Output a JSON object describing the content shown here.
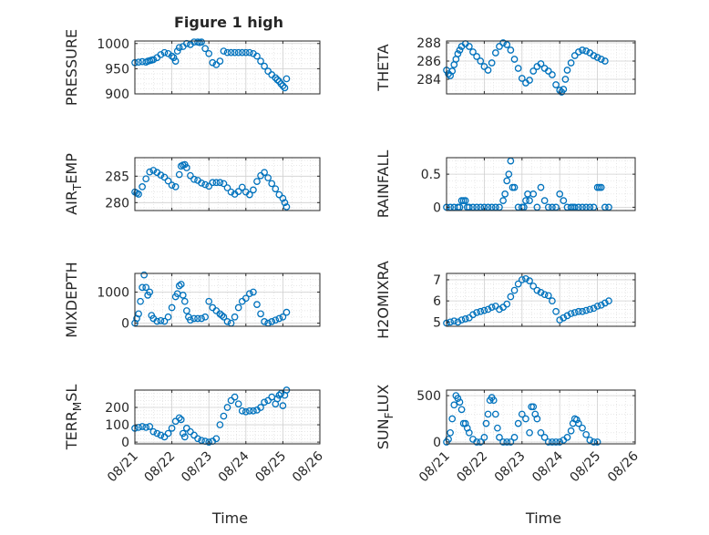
{
  "figure_title": "Figure 1 high",
  "marker_color": "#0072BD",
  "x_ticks": [
    "08/21",
    "08/22",
    "08/23",
    "08/24",
    "08/25",
    "08/26"
  ],
  "chart_data": [
    {
      "id": "pressure",
      "type": "scatter",
      "ylabel": "PRESSURE",
      "xlim": [
        0,
        5
      ],
      "ylim": [
        900,
        1005
      ],
      "yticks": [
        900,
        950,
        1000
      ],
      "grid": true,
      "show_xticks": false,
      "x": [
        0,
        0.1,
        0.2,
        0.3,
        0.35,
        0.4,
        0.45,
        0.5,
        0.6,
        0.7,
        0.8,
        0.9,
        1.0,
        1.05,
        1.1,
        1.15,
        1.2,
        1.3,
        1.4,
        1.5,
        1.6,
        1.7,
        1.75,
        1.8,
        1.9,
        2.0,
        2.1,
        2.2,
        2.3,
        2.4,
        2.5,
        2.6,
        2.7,
        2.8,
        2.9,
        3.0,
        3.1,
        3.2,
        3.3,
        3.4,
        3.5,
        3.6,
        3.7,
        3.8,
        3.85,
        3.9,
        3.95,
        4.0,
        4.05,
        4.1
      ],
      "y": [
        962,
        963,
        964,
        963,
        965,
        966,
        967,
        968,
        972,
        978,
        982,
        980,
        975,
        972,
        965,
        985,
        992,
        994,
        1000,
        998,
        1003,
        1003,
        1002,
        1003,
        990,
        980,
        962,
        958,
        965,
        985,
        982,
        982,
        982,
        982,
        982,
        982,
        982,
        980,
        975,
        965,
        955,
        945,
        938,
        932,
        928,
        925,
        920,
        916,
        912,
        930
      ]
    },
    {
      "id": "theta",
      "type": "scatter",
      "ylabel": "THETA",
      "xlim": [
        0,
        5
      ],
      "ylim": [
        282.4,
        288.2
      ],
      "yticks": [
        284,
        286,
        288
      ],
      "grid": true,
      "show_xticks": false,
      "x": [
        0,
        0.05,
        0.1,
        0.15,
        0.2,
        0.25,
        0.3,
        0.35,
        0.4,
        0.5,
        0.6,
        0.7,
        0.8,
        0.9,
        1.0,
        1.1,
        1.2,
        1.3,
        1.4,
        1.5,
        1.6,
        1.7,
        1.8,
        1.9,
        2.0,
        2.1,
        2.2,
        2.3,
        2.4,
        2.5,
        2.6,
        2.7,
        2.8,
        2.9,
        3.0,
        3.05,
        3.1,
        3.15,
        3.2,
        3.3,
        3.4,
        3.5,
        3.6,
        3.7,
        3.8,
        3.9,
        4.0,
        4.1,
        4.2
      ],
      "y": [
        285,
        284.6,
        284.4,
        284.9,
        285.6,
        286.2,
        286.8,
        287.2,
        287.6,
        287.9,
        287.6,
        287.0,
        286.5,
        286.0,
        285.4,
        285.0,
        285.8,
        286.9,
        287.6,
        288.0,
        287.8,
        287.2,
        286.2,
        285.2,
        284.1,
        283.6,
        283.9,
        284.9,
        285.4,
        285.7,
        285.2,
        284.9,
        284.5,
        283.4,
        282.8,
        282.6,
        282.9,
        284.0,
        285.0,
        285.8,
        286.6,
        287.0,
        287.2,
        287.1,
        286.9,
        286.6,
        286.4,
        286.2,
        286.0
      ]
    },
    {
      "id": "air_temp",
      "type": "scatter",
      "ylabel": "AIR_TEMP",
      "xlim": [
        0,
        5
      ],
      "ylim": [
        278.5,
        288.5
      ],
      "yticks": [
        280,
        285
      ],
      "grid": true,
      "show_xticks": false,
      "x": [
        0,
        0.05,
        0.1,
        0.2,
        0.3,
        0.4,
        0.5,
        0.6,
        0.7,
        0.8,
        0.9,
        1.0,
        1.1,
        1.2,
        1.25,
        1.3,
        1.35,
        1.4,
        1.5,
        1.6,
        1.7,
        1.8,
        1.9,
        2.0,
        2.1,
        2.2,
        2.3,
        2.4,
        2.5,
        2.6,
        2.7,
        2.8,
        2.9,
        3.0,
        3.1,
        3.2,
        3.3,
        3.4,
        3.5,
        3.6,
        3.7,
        3.8,
        3.9,
        4.0,
        4.05,
        4.1
      ],
      "y": [
        282,
        281.8,
        281.6,
        283,
        284.5,
        285.8,
        286.1,
        285.7,
        285.2,
        284.8,
        284.1,
        283.3,
        283.0,
        285.3,
        286.9,
        287.1,
        287.2,
        286.6,
        285.1,
        284.4,
        284.2,
        283.7,
        283.4,
        283.1,
        283.8,
        283.8,
        283.8,
        283.6,
        282.8,
        282.0,
        281.6,
        282.1,
        282.9,
        282.0,
        281.5,
        282.4,
        284.0,
        285.1,
        285.7,
        284.7,
        283.6,
        282.6,
        281.5,
        280.8,
        280.0,
        279.2
      ]
    },
    {
      "id": "rainfall",
      "type": "scatter",
      "ylabel": "RAINFALL",
      "xlim": [
        0,
        5
      ],
      "ylim": [
        -0.05,
        0.75
      ],
      "yticks": [
        0,
        0.5
      ],
      "grid": true,
      "show_xticks": false,
      "x": [
        0,
        0.1,
        0.2,
        0.3,
        0.35,
        0.4,
        0.45,
        0.5,
        0.55,
        0.6,
        0.7,
        0.8,
        0.9,
        1.0,
        1.1,
        1.2,
        1.3,
        1.4,
        1.5,
        1.55,
        1.6,
        1.65,
        1.7,
        1.75,
        1.8,
        1.9,
        2.0,
        2.05,
        2.1,
        2.15,
        2.2,
        2.3,
        2.4,
        2.5,
        2.6,
        2.7,
        2.8,
        2.9,
        3.0,
        3.1,
        3.2,
        3.3,
        3.35,
        3.4,
        3.5,
        3.6,
        3.7,
        3.8,
        3.9,
        4.0,
        4.05,
        4.1,
        4.2,
        4.3
      ],
      "y": [
        0,
        0,
        0,
        0,
        0,
        0.1,
        0.1,
        0.1,
        0,
        0,
        0,
        0,
        0,
        0,
        0,
        0,
        0,
        0,
        0.1,
        0.2,
        0.4,
        0.5,
        0.7,
        0.3,
        0.3,
        0,
        0,
        0,
        0.1,
        0.2,
        0.1,
        0.2,
        0,
        0.3,
        0.1,
        0,
        0,
        0,
        0.2,
        0.1,
        0,
        0,
        0,
        0,
        0,
        0,
        0,
        0,
        0,
        0.3,
        0.3,
        0.3,
        0,
        0
      ]
    },
    {
      "id": "mixdepth",
      "type": "scatter",
      "ylabel": "MIXDEPTH",
      "xlim": [
        0,
        5
      ],
      "ylim": [
        -100,
        1600
      ],
      "yticks": [
        0,
        1000
      ],
      "grid": true,
      "show_xticks": false,
      "x": [
        0,
        0.05,
        0.1,
        0.15,
        0.2,
        0.25,
        0.3,
        0.35,
        0.4,
        0.45,
        0.5,
        0.6,
        0.7,
        0.8,
        0.9,
        1.0,
        1.1,
        1.15,
        1.2,
        1.25,
        1.3,
        1.35,
        1.4,
        1.45,
        1.5,
        1.6,
        1.7,
        1.8,
        1.9,
        2.0,
        2.1,
        2.2,
        2.3,
        2.35,
        2.4,
        2.5,
        2.6,
        2.7,
        2.8,
        2.9,
        3.0,
        3.1,
        3.2,
        3.3,
        3.4,
        3.5,
        3.6,
        3.7,
        3.8,
        3.9,
        4.0,
        4.1
      ],
      "y": [
        0,
        150,
        300,
        700,
        1150,
        1550,
        1150,
        900,
        1000,
        250,
        150,
        60,
        80,
        60,
        200,
        500,
        850,
        950,
        1200,
        1250,
        900,
        700,
        400,
        200,
        100,
        150,
        150,
        150,
        200,
        700,
        500,
        400,
        300,
        250,
        200,
        50,
        0,
        200,
        500,
        700,
        800,
        950,
        1000,
        600,
        300,
        50,
        0,
        50,
        100,
        150,
        200,
        350
      ]
    },
    {
      "id": "h2omixra",
      "type": "scatter",
      "ylabel": "H2OMIXRA",
      "xlim": [
        0,
        5
      ],
      "ylim": [
        4.8,
        7.3
      ],
      "yticks": [
        5,
        6,
        7
      ],
      "grid": true,
      "show_xticks": false,
      "x": [
        0,
        0.1,
        0.2,
        0.3,
        0.4,
        0.5,
        0.6,
        0.7,
        0.8,
        0.9,
        1.0,
        1.1,
        1.2,
        1.3,
        1.4,
        1.5,
        1.6,
        1.7,
        1.8,
        1.9,
        2.0,
        2.1,
        2.2,
        2.3,
        2.4,
        2.5,
        2.6,
        2.7,
        2.8,
        2.9,
        3.0,
        3.1,
        3.2,
        3.3,
        3.4,
        3.5,
        3.6,
        3.7,
        3.8,
        3.9,
        4.0,
        4.1,
        4.2,
        4.3
      ],
      "y": [
        4.95,
        5.0,
        5.05,
        5.0,
        5.1,
        5.15,
        5.2,
        5.35,
        5.45,
        5.5,
        5.55,
        5.6,
        5.7,
        5.75,
        5.6,
        5.7,
        5.85,
        6.2,
        6.5,
        6.8,
        7.0,
        7.05,
        6.95,
        6.7,
        6.5,
        6.4,
        6.3,
        6.25,
        6.0,
        5.5,
        5.1,
        5.2,
        5.3,
        5.4,
        5.45,
        5.5,
        5.5,
        5.55,
        5.6,
        5.65,
        5.75,
        5.8,
        5.9,
        6.0
      ]
    },
    {
      "id": "terr_msl",
      "type": "scatter",
      "ylabel": "TERR_MSL",
      "xlim": [
        0,
        5
      ],
      "ylim": [
        -10,
        300
      ],
      "yticks": [
        0,
        100,
        200
      ],
      "grid": true,
      "show_xticks": true,
      "xlabel": "Time",
      "x": [
        0,
        0.1,
        0.2,
        0.3,
        0.4,
        0.5,
        0.6,
        0.7,
        0.8,
        0.9,
        1.0,
        1.1,
        1.2,
        1.25,
        1.3,
        1.35,
        1.4,
        1.5,
        1.6,
        1.7,
        1.8,
        1.9,
        2.0,
        2.1,
        2.2,
        2.3,
        2.4,
        2.5,
        2.6,
        2.7,
        2.8,
        2.9,
        3.0,
        3.1,
        3.2,
        3.3,
        3.4,
        3.5,
        3.6,
        3.7,
        3.8,
        3.85,
        3.9,
        3.95,
        4.0,
        4.05,
        4.1
      ],
      "y": [
        80,
        85,
        90,
        85,
        90,
        60,
        50,
        40,
        30,
        50,
        80,
        120,
        140,
        130,
        50,
        30,
        80,
        60,
        40,
        20,
        10,
        5,
        0,
        5,
        20,
        100,
        150,
        200,
        240,
        260,
        220,
        180,
        175,
        180,
        180,
        185,
        200,
        230,
        240,
        260,
        220,
        250,
        270,
        280,
        210,
        270,
        300
      ]
    },
    {
      "id": "sun_flux",
      "type": "scatter",
      "ylabel": "SUN_FLUX",
      "xlim": [
        0,
        5
      ],
      "ylim": [
        -20,
        560
      ],
      "yticks": [
        0,
        500
      ],
      "grid": true,
      "show_xticks": true,
      "xlabel": "Time",
      "x": [
        0,
        0.05,
        0.1,
        0.15,
        0.2,
        0.25,
        0.3,
        0.35,
        0.4,
        0.45,
        0.5,
        0.55,
        0.6,
        0.7,
        0.8,
        0.9,
        1.0,
        1.05,
        1.1,
        1.15,
        1.2,
        1.25,
        1.3,
        1.35,
        1.4,
        1.5,
        1.6,
        1.7,
        1.8,
        1.9,
        2.0,
        2.1,
        2.2,
        2.25,
        2.3,
        2.35,
        2.4,
        2.5,
        2.6,
        2.7,
        2.8,
        2.9,
        3.0,
        3.1,
        3.2,
        3.3,
        3.35,
        3.4,
        3.45,
        3.5,
        3.6,
        3.7,
        3.8,
        3.9,
        4.0
      ],
      "y": [
        0,
        30,
        100,
        250,
        400,
        500,
        470,
        430,
        350,
        200,
        200,
        150,
        100,
        30,
        0,
        0,
        50,
        200,
        300,
        450,
        480,
        450,
        300,
        150,
        50,
        0,
        0,
        0,
        50,
        200,
        300,
        250,
        100,
        380,
        380,
        300,
        250,
        100,
        50,
        0,
        0,
        0,
        0,
        20,
        50,
        120,
        200,
        250,
        240,
        200,
        150,
        80,
        20,
        0,
        0
      ]
    }
  ]
}
